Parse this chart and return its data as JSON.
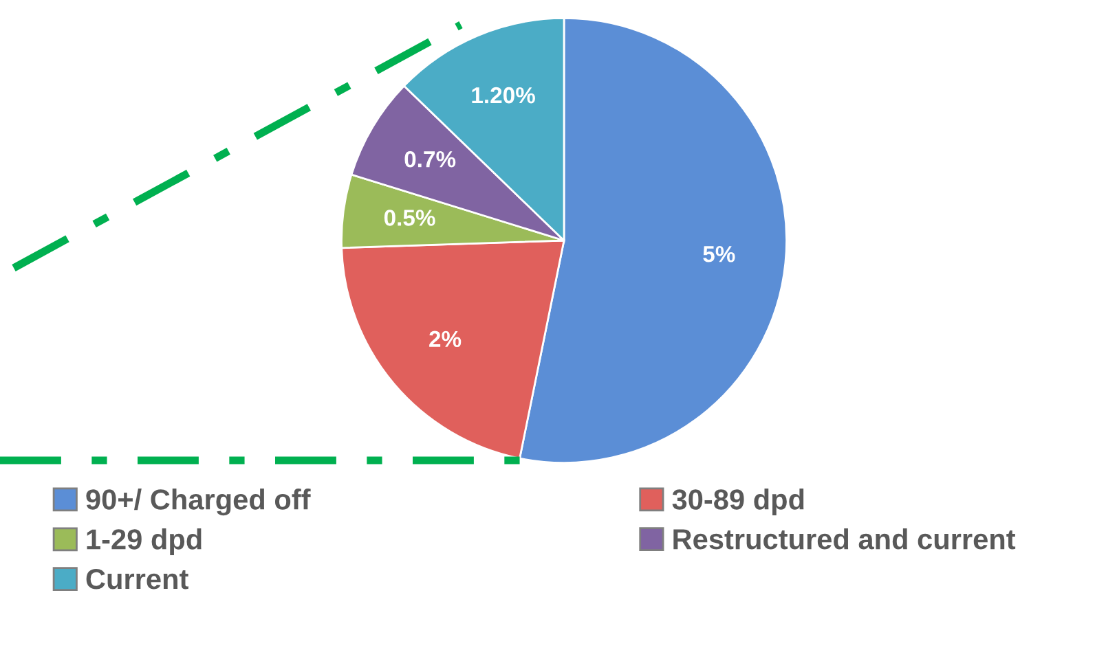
{
  "chart_data": {
    "type": "pie",
    "categories": [
      "90+/ Charged off",
      "30-89 dpd",
      "1-29 dpd",
      "Restructured and current",
      "Current"
    ],
    "values": [
      5,
      2,
      0.5,
      0.7,
      1.2
    ],
    "colors": [
      "#5b8ed6",
      "#e0605c",
      "#9bbb59",
      "#8064a2",
      "#4bacc6"
    ],
    "value_labels": [
      "5%",
      "2%",
      "0.5%",
      "0.7%",
      "1.20%"
    ],
    "legend": "bottom"
  }
}
